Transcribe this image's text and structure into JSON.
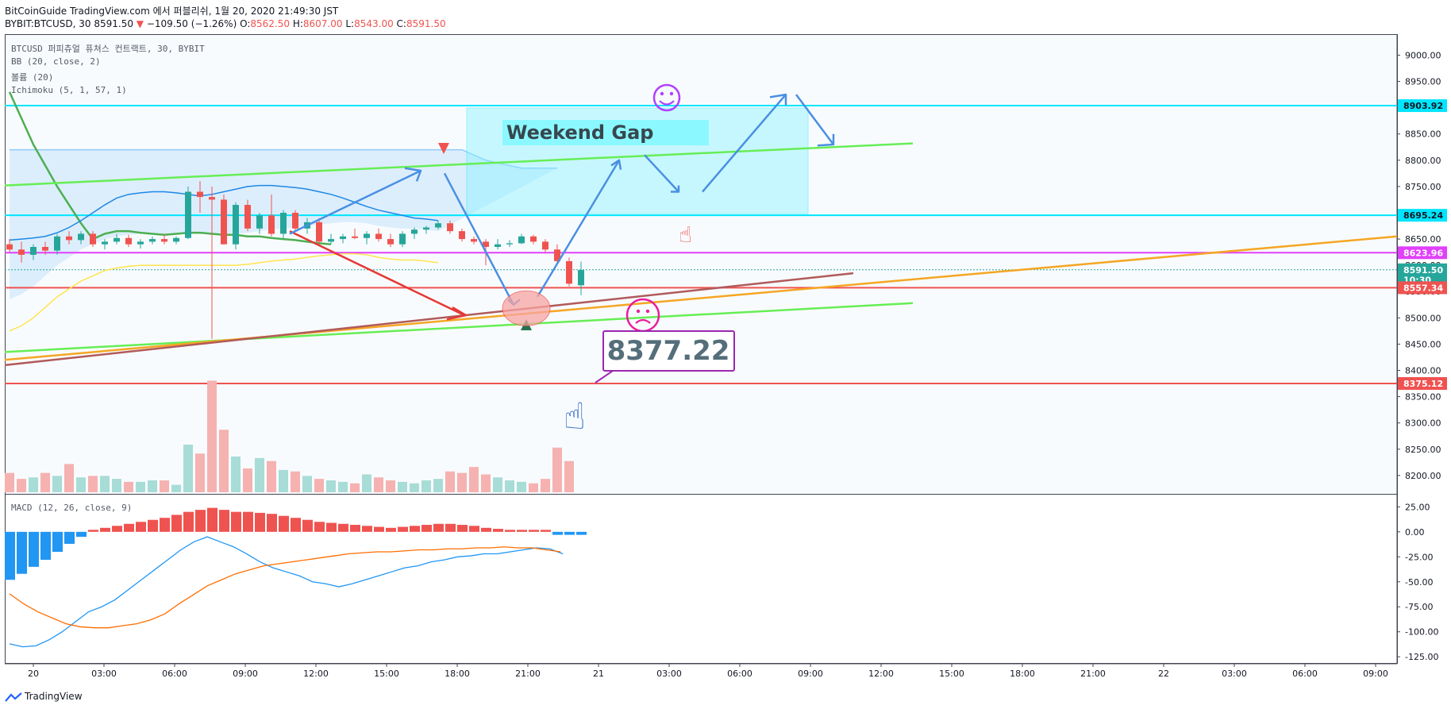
{
  "header": {
    "publish_line": "BitCoinGuide TradingView.com 에서 퍼블리쉬, 1월 20, 2020 21:49:30 JST",
    "symbol": "BYBIT:BTCUSD, 30",
    "last": "8591.50",
    "change": "−109.50 (−1.26%)",
    "o_label": "O:",
    "o": "8562.50",
    "h_label": "H:",
    "h": "8607.00",
    "l_label": "L:",
    "l": "8543.00",
    "c_label": "C:",
    "c": "8591.50"
  },
  "legend": {
    "line1": "BTCUSD 퍼피츄얼 퓨쳐스 컨트랙트, 30, BYBIT",
    "line2": "BB (20, close, 2)",
    "line3": "볼륨 (20)",
    "line4": "Ichimoku (5, 1, 57, 1)",
    "macd": "MACD (12, 26, close, 9)"
  },
  "annotations": {
    "weekend_gap": "Weekend Gap",
    "price_callout": "8377.22"
  },
  "footer": {
    "brand": "TradingView"
  },
  "colors": {
    "up": "#26a69a",
    "down": "#ef5350",
    "cyan": "#00e5ff",
    "magenta": "#e040fb",
    "green_line": "#66ee55",
    "orange": "#f5a623",
    "brown": "#b15a5a",
    "blue_arrow": "#4a90e2",
    "macd_line": "#2196f3",
    "signal_line": "#ff6d00"
  },
  "chart_data": [
    {
      "type": "candlestick",
      "x_ticks": [
        "20",
        "03:00",
        "06:00",
        "09:00",
        "12:00",
        "15:00",
        "18:00",
        "21:00",
        "21",
        "03:00",
        "06:00",
        "09:00",
        "12:00",
        "15:00",
        "18:00",
        "21:00",
        "22",
        "03:00",
        "06:00",
        "09:00"
      ],
      "y_ticks": [
        9000,
        8950,
        8900,
        8850,
        8800,
        8750,
        8700,
        8650,
        8600,
        8550,
        8500,
        8450,
        8400,
        8350,
        8300,
        8250,
        8200
      ],
      "ylim": [
        8165,
        9040
      ],
      "price_labels": [
        {
          "value": 8903.92,
          "text": "8903.92",
          "color": "#00e5ff"
        },
        {
          "value": 8695.24,
          "text": "8695.24",
          "color": "#00e5ff"
        },
        {
          "value": 8623.96,
          "text": "8623.96",
          "color": "#e040fb"
        },
        {
          "value": 8591.5,
          "text": "8591.50",
          "color": "#26a69a"
        },
        {
          "value": 8572.0,
          "text": "10:30",
          "color": "#26a69a"
        },
        {
          "value": 8557.34,
          "text": "8557.34",
          "color": "#ef5350"
        },
        {
          "value": 8375.12,
          "text": "8375.12",
          "color": "#ef5350"
        }
      ],
      "candles": [
        [
          8640,
          8650,
          8625,
          8630
        ],
        [
          8630,
          8645,
          8605,
          8620
        ],
        [
          8620,
          8640,
          8610,
          8635
        ],
        [
          8635,
          8645,
          8620,
          8628
        ],
        [
          8628,
          8660,
          8620,
          8655
        ],
        [
          8655,
          8665,
          8640,
          8648
        ],
        [
          8648,
          8665,
          8640,
          8660
        ],
        [
          8660,
          8665,
          8635,
          8640
        ],
        [
          8640,
          8650,
          8630,
          8645
        ],
        [
          8645,
          8660,
          8640,
          8652
        ],
        [
          8652,
          8658,
          8635,
          8640
        ],
        [
          8640,
          8650,
          8632,
          8645
        ],
        [
          8645,
          8655,
          8640,
          8650
        ],
        [
          8650,
          8660,
          8640,
          8645
        ],
        [
          8645,
          8655,
          8640,
          8652
        ],
        [
          8652,
          8750,
          8650,
          8740
        ],
        [
          8740,
          8760,
          8700,
          8730
        ],
        [
          8730,
          8750,
          8460,
          8725
        ],
        [
          8725,
          8735,
          8640,
          8640
        ],
        [
          8640,
          8720,
          8630,
          8715
        ],
        [
          8715,
          8725,
          8665,
          8670
        ],
        [
          8670,
          8700,
          8660,
          8695
        ],
        [
          8695,
          8735,
          8655,
          8660
        ],
        [
          8660,
          8705,
          8650,
          8700
        ],
        [
          8700,
          8705,
          8665,
          8670
        ],
        [
          8670,
          8690,
          8660,
          8682
        ],
        [
          8682,
          8690,
          8640,
          8645
        ],
        [
          8645,
          8660,
          8640,
          8650
        ],
        [
          8650,
          8660,
          8642,
          8655
        ],
        [
          8655,
          8670,
          8650,
          8652
        ],
        [
          8652,
          8665,
          8640,
          8660
        ],
        [
          8660,
          8670,
          8645,
          8650
        ],
        [
          8650,
          8660,
          8635,
          8640
        ],
        [
          8640,
          8665,
          8635,
          8660
        ],
        [
          8660,
          8672,
          8650,
          8668
        ],
        [
          8668,
          8675,
          8660,
          8672
        ],
        [
          8672,
          8685,
          8668,
          8680
        ],
        [
          8680,
          8685,
          8660,
          8665
        ],
        [
          8665,
          8670,
          8645,
          8650
        ],
        [
          8650,
          8655,
          8640,
          8645
        ],
        [
          8645,
          8650,
          8600,
          8635
        ],
        [
          8635,
          8650,
          8630,
          8640
        ],
        [
          8640,
          8648,
          8635,
          8642
        ],
        [
          8642,
          8660,
          8640,
          8655
        ],
        [
          8655,
          8658,
          8640,
          8645
        ],
        [
          8645,
          8650,
          8625,
          8630
        ],
        [
          8630,
          8640,
          8600,
          8608
        ],
        [
          8608,
          8615,
          8560,
          8565
        ],
        [
          8562,
          8607,
          8543,
          8591
        ]
      ],
      "volume": [
        13,
        9,
        10,
        13,
        11,
        19,
        10,
        11,
        11,
        9,
        7,
        7,
        8,
        8,
        5,
        32,
        26,
        75,
        42,
        24,
        16,
        23,
        21,
        15,
        14,
        11,
        9,
        8,
        7,
        6,
        12,
        10,
        8,
        7,
        6,
        8,
        9,
        14,
        13,
        17,
        12,
        10,
        8,
        7,
        6,
        9,
        30,
        21
      ],
      "bb_upper": [
        8820,
        8820,
        8820,
        8820,
        8820,
        8820,
        8820,
        8820,
        8820,
        8820,
        8820,
        8820,
        8820,
        8820,
        8820,
        8820,
        8820,
        8820,
        8820,
        8820,
        8820,
        8820,
        8820,
        8820,
        8820,
        8820,
        8820,
        8820,
        8820,
        8820,
        8820,
        8820,
        8820,
        8820,
        8820,
        8820,
        8820,
        8820,
        8820,
        8810,
        8800,
        8795,
        8790,
        8785,
        8785,
        8785,
        8785
      ],
      "bb_middle": [
        8648,
        8650,
        8652,
        8655,
        8662,
        8672,
        8685,
        8700,
        8715,
        8728,
        8735,
        8738,
        8740,
        8740,
        8738,
        8735,
        8732,
        8735,
        8740,
        8745,
        8750,
        8752,
        8752,
        8750,
        8748,
        8745,
        8740,
        8735,
        8728,
        8720,
        8712,
        8705,
        8700,
        8695,
        8690,
        8688,
        8685
      ],
      "bb_lower": [
        8475,
        8485,
        8500,
        8520,
        8540,
        8555,
        8570,
        8580,
        8590,
        8595,
        8598,
        8600,
        8600,
        8600,
        8600,
        8600,
        8600,
        8600,
        8600,
        8600,
        8602,
        8605,
        8608,
        8610,
        8612,
        8615,
        8618,
        8620,
        8622,
        8622,
        8620,
        8615,
        8612,
        8610,
        8610,
        8608,
        8605
      ],
      "ichimoku_green": [
        8930,
        8880,
        8830,
        8790,
        8750,
        8715,
        8680,
        8650,
        8660,
        8665,
        8665,
        8662,
        8660,
        8658,
        8660,
        8662,
        8662,
        8660,
        8658,
        8658,
        8655,
        8655,
        8652,
        8650,
        8648,
        8645,
        8642,
        8640
      ],
      "weekend_gap_zone": {
        "top": 8903.92,
        "bottom": 8695.24
      }
    },
    {
      "type": "bar",
      "name": "MACD",
      "y_ticks": [
        25,
        0,
        -25,
        -50,
        -75,
        -100,
        -125
      ],
      "ylim": [
        -132,
        38
      ],
      "histogram": [
        -48,
        -42,
        -35,
        -28,
        -20,
        -12,
        -5,
        2,
        4,
        6,
        8,
        10,
        12,
        14,
        17,
        20,
        22,
        24,
        22,
        20,
        20,
        19,
        18,
        16,
        14,
        12,
        10,
        9,
        8,
        7,
        6,
        5,
        4,
        5,
        6,
        7,
        8,
        8,
        7,
        6,
        4,
        3,
        2,
        2,
        2,
        2,
        -3,
        -3,
        -3
      ],
      "macd": [
        -112,
        -115,
        -114,
        -108,
        -100,
        -90,
        -80,
        -75,
        -68,
        -58,
        -48,
        -38,
        -28,
        -18,
        -10,
        -5,
        -10,
        -15,
        -22,
        -30,
        -36,
        -40,
        -44,
        -50,
        -52,
        -55,
        -52,
        -48,
        -44,
        -40,
        -36,
        -34,
        -30,
        -28,
        -25,
        -24,
        -22,
        -22,
        -20,
        -18,
        -16,
        -17,
        -22
      ],
      "signal": [
        -62,
        -72,
        -80,
        -86,
        -92,
        -95,
        -96,
        -96,
        -94,
        -92,
        -88,
        -82,
        -72,
        -63,
        -54,
        -48,
        -42,
        -38,
        -34,
        -32,
        -30,
        -28,
        -26,
        -24,
        -22,
        -21,
        -20,
        -20,
        -19,
        -18,
        -18,
        -17,
        -17,
        -16,
        -16,
        -15,
        -16,
        -16,
        -18,
        -20
      ]
    }
  ]
}
